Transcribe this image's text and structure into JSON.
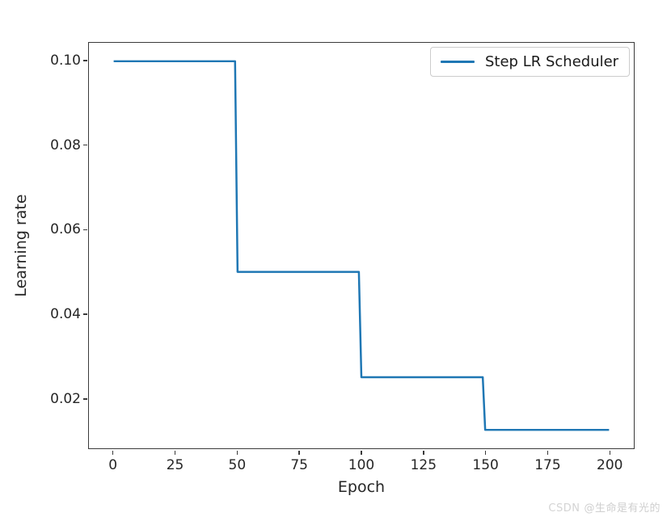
{
  "colors": {
    "line": "#1f77b4",
    "spine": "#3a3a3a",
    "text": "#262626",
    "legend_border": "#cccccc",
    "watermark": "#cfcfcf",
    "background": "#ffffff"
  },
  "watermark": {
    "brand": "CSDN",
    "user": "@生命是有光的"
  },
  "chart_data": {
    "type": "line",
    "style": "step",
    "title": "",
    "xlabel": "Epoch",
    "ylabel": "Learning rate",
    "xlim": [
      -10,
      210
    ],
    "ylim": [
      0.008125,
      0.104375
    ],
    "grid": false,
    "x_ticks": [
      {
        "value": 0,
        "label": "0"
      },
      {
        "value": 25,
        "label": "25"
      },
      {
        "value": 50,
        "label": "50"
      },
      {
        "value": 75,
        "label": "75"
      },
      {
        "value": 100,
        "label": "100"
      },
      {
        "value": 125,
        "label": "125"
      },
      {
        "value": 150,
        "label": "150"
      },
      {
        "value": 175,
        "label": "175"
      },
      {
        "value": 200,
        "label": "200"
      }
    ],
    "y_ticks": [
      {
        "value": 0.02,
        "label": "0.02"
      },
      {
        "value": 0.04,
        "label": "0.04"
      },
      {
        "value": 0.06,
        "label": "0.06"
      },
      {
        "value": 0.08,
        "label": "0.08"
      },
      {
        "value": 0.1,
        "label": "0.10"
      }
    ],
    "legend": {
      "position": "upper right",
      "entries": [
        "Step LR Scheduler"
      ]
    },
    "series": [
      {
        "name": "Step LR Scheduler",
        "color": "#1f77b4",
        "line_width": 2.5,
        "points": [
          [
            0,
            0.1
          ],
          [
            49,
            0.1
          ],
          [
            50,
            0.05
          ],
          [
            99,
            0.05
          ],
          [
            100,
            0.025
          ],
          [
            149,
            0.025
          ],
          [
            150,
            0.0125
          ],
          [
            200,
            0.0125
          ]
        ]
      }
    ]
  }
}
